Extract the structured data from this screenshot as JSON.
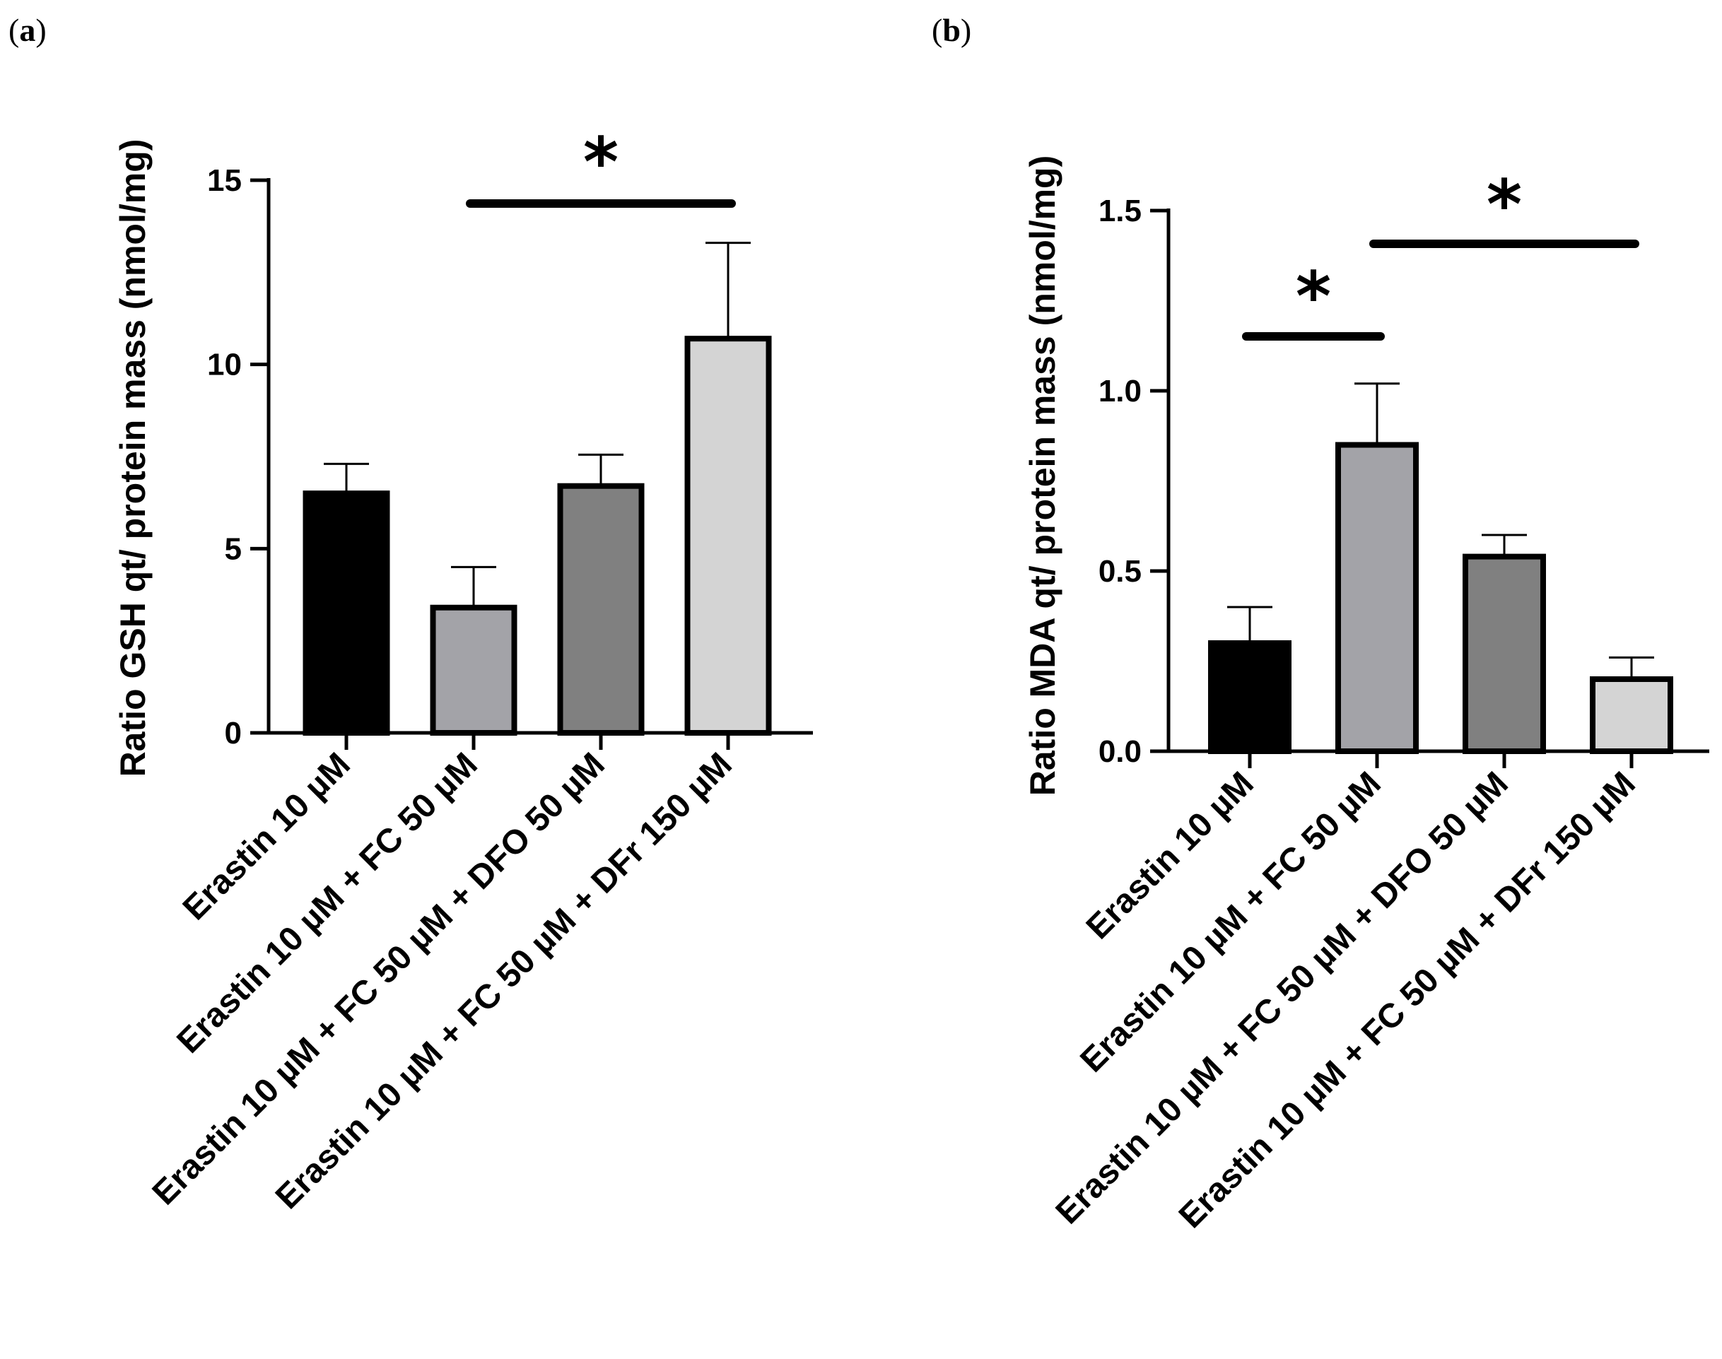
{
  "chart_data": [
    {
      "type": "bar",
      "panel_label": "(a)",
      "panel_letter": "a",
      "title": "",
      "xlabel": "",
      "ylabel": "Ratio GSH qt/ protein mass (nmol/mg)",
      "ylim": [
        0,
        15
      ],
      "yticks": [
        0,
        5,
        10,
        15
      ],
      "ytick_labels": [
        "0",
        "5",
        "10",
        "15"
      ],
      "grid": false,
      "categories": [
        "Erastin 10 µM",
        "Erastin 10 µM + FC 50 µM",
        "Erastin 10 µM + FC 50 µM + DFO 50 µM",
        "Erastin 10 µM + FC 50 µM + DFr 150 µM"
      ],
      "values": [
        6.5,
        3.4,
        6.7,
        10.7
      ],
      "errors": [
        0.8,
        1.1,
        0.85,
        2.6
      ],
      "colors": [
        "#000000",
        "#a3a3a8",
        "#808080",
        "#d4d4d4"
      ],
      "significance": [
        {
          "from": 1,
          "to": 3,
          "label": "*"
        }
      ]
    },
    {
      "type": "bar",
      "panel_label": "(b)",
      "panel_letter": "b",
      "title": "",
      "xlabel": "",
      "ylabel": "Ratio MDA qt/ protein mass (nmol/mg)",
      "ylim": [
        0,
        1.5
      ],
      "yticks": [
        0,
        0.5,
        1.0,
        1.5
      ],
      "ytick_labels": [
        "0.0",
        "0.5",
        "1.0",
        "1.5"
      ],
      "grid": false,
      "categories": [
        "Erastin 10 µM",
        "Erastin 10 µM + FC 50 µM",
        "Erastin 10 µM + FC 50 µM + DFO 50 µM",
        "Erastin 10 µM + FC 50 µM + DFr 150 µM"
      ],
      "values": [
        0.3,
        0.85,
        0.54,
        0.2
      ],
      "errors": [
        0.1,
        0.17,
        0.06,
        0.06
      ],
      "colors": [
        "#000000",
        "#a3a3a8",
        "#808080",
        "#d4d4d4"
      ],
      "significance": [
        {
          "from": 0,
          "to": 1,
          "label": "*"
        },
        {
          "from": 1,
          "to": 3,
          "label": "*"
        }
      ]
    }
  ]
}
